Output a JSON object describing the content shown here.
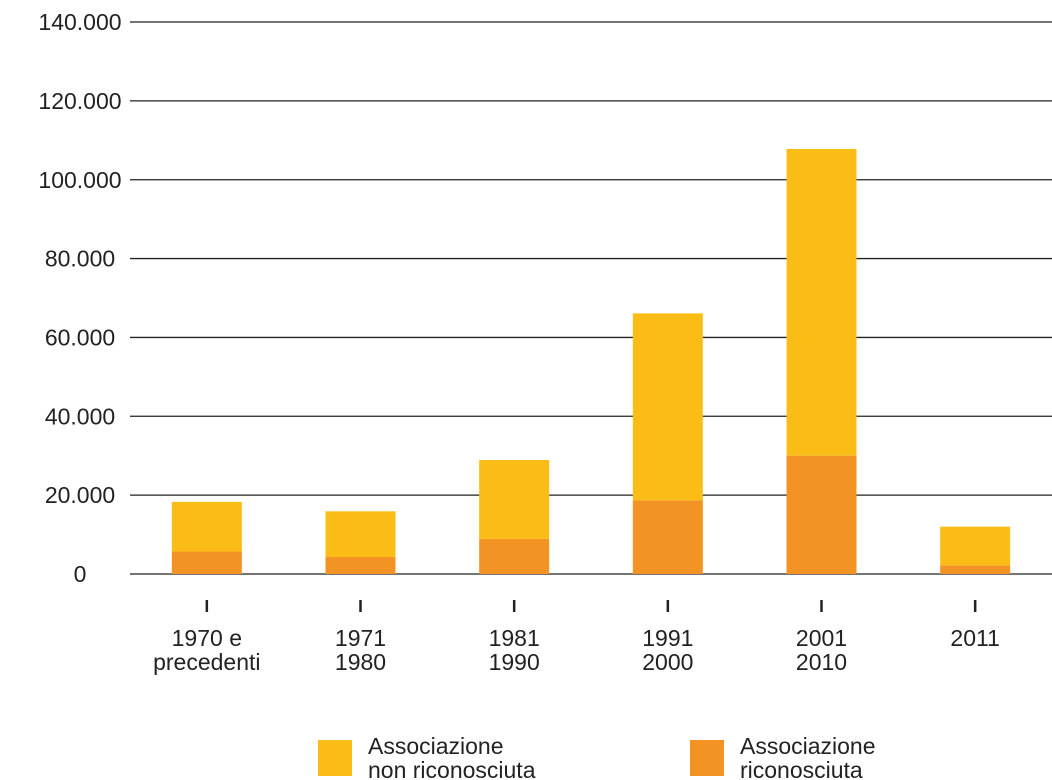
{
  "chart_data": {
    "type": "stacked_bar",
    "categories": [
      "1970 e\nprecedenti",
      "1971\n1980",
      "1981\n1990",
      "1991\n2000",
      "2001\n2010",
      "2011"
    ],
    "series": [
      {
        "name": "Associazione\nnon riconosciuta",
        "color": "#fbbd15",
        "values": [
          12600,
          11600,
          20000,
          47400,
          77800,
          9800
        ]
      },
      {
        "name": "Associazione\nriconosciuta",
        "color": "#f39323",
        "values": [
          5700,
          4300,
          8900,
          18700,
          30000,
          2200
        ]
      }
    ],
    "ylim": [
      0,
      140000
    ],
    "yticks": [
      0,
      {
        "value": 20000,
        "label": "20.000"
      },
      {
        "value": 40000,
        "label": "40.000"
      },
      {
        "value": 60000,
        "label": "60.000"
      },
      {
        "value": 80000,
        "label": "80.000"
      },
      {
        "value": 100000,
        "label": "100.000"
      },
      {
        "value": 120000,
        "label": "120.000"
      },
      {
        "value": 140000,
        "label": "140.000"
      }
    ],
    "grid": true
  }
}
